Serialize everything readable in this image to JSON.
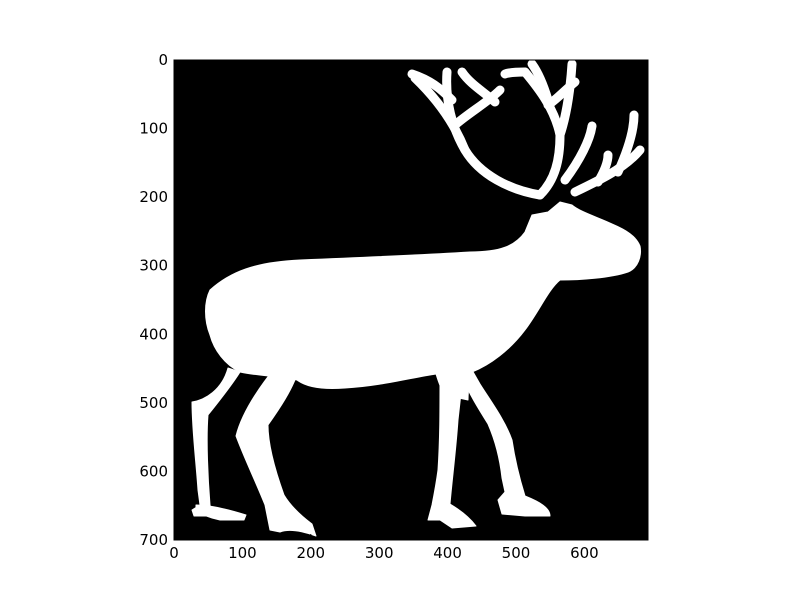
{
  "figure": {
    "background_color": "#ffffff",
    "image_background_color": "#000000",
    "silhouette_color": "#ffffff",
    "subject_icon": "reindeer-silhouette"
  },
  "axes": {
    "x_range": [
      0,
      693
    ],
    "y_range": [
      700,
      0
    ],
    "x_ticks": [
      {
        "value": 0,
        "label": "0"
      },
      {
        "value": 100,
        "label": "100"
      },
      {
        "value": 200,
        "label": "200"
      },
      {
        "value": 300,
        "label": "300"
      },
      {
        "value": 400,
        "label": "400"
      },
      {
        "value": 500,
        "label": "500"
      },
      {
        "value": 600,
        "label": "600"
      }
    ],
    "y_ticks": [
      {
        "value": 0,
        "label": "0"
      },
      {
        "value": 100,
        "label": "100"
      },
      {
        "value": 200,
        "label": "200"
      },
      {
        "value": 300,
        "label": "300"
      },
      {
        "value": 400,
        "label": "400"
      },
      {
        "value": 500,
        "label": "500"
      },
      {
        "value": 600,
        "label": "600"
      },
      {
        "value": 700,
        "label": "700"
      }
    ]
  }
}
